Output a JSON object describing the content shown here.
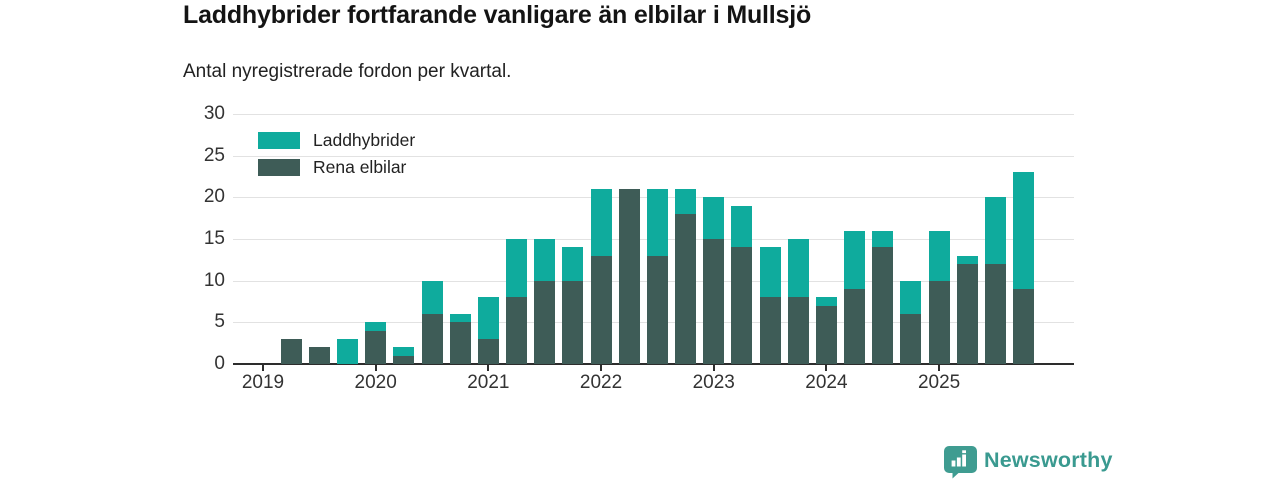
{
  "header": {
    "title": "Laddhybrider fortfarande vanligare än elbilar i Mullsjö",
    "subtitle": "Antal nyregistrerade fordon per kvartal."
  },
  "chart_data": {
    "type": "bar",
    "stacked": true,
    "title": "Laddhybrider fortfarande vanligare än elbilar i Mullsjö",
    "subtitle": "Antal nyregistrerade fordon per kvartal.",
    "categories": [
      "2019 Q1",
      "2019 Q2",
      "2019 Q3",
      "2019 Q4",
      "2020 Q1",
      "2020 Q2",
      "2020 Q3",
      "2020 Q4",
      "2021 Q1",
      "2021 Q2",
      "2021 Q3",
      "2021 Q4",
      "2022 Q1",
      "2022 Q2",
      "2022 Q3",
      "2022 Q4",
      "2023 Q1",
      "2023 Q2",
      "2023 Q3",
      "2023 Q4",
      "2024 Q1",
      "2024 Q2",
      "2024 Q3",
      "2024 Q4",
      "2025 Q1",
      "2025 Q2",
      "2025 Q3",
      "2025 Q4"
    ],
    "series": [
      {
        "name": "Laddhybrider",
        "color": "#0fab9d",
        "values": [
          0,
          0,
          0,
          3,
          1,
          1,
          4,
          1,
          5,
          7,
          5,
          4,
          8,
          0,
          8,
          3,
          5,
          5,
          6,
          7,
          1,
          7,
          2,
          4,
          6,
          1,
          8,
          14
        ]
      },
      {
        "name": "Rena elbilar",
        "color": "#3e5c57",
        "values": [
          0,
          3,
          2,
          0,
          4,
          1,
          6,
          5,
          3,
          8,
          10,
          10,
          13,
          21,
          13,
          18,
          15,
          14,
          8,
          8,
          7,
          9,
          14,
          6,
          10,
          12,
          12,
          9
        ]
      }
    ],
    "stack_bottom_to_top": [
      "Rena elbilar",
      "Laddhybrider"
    ],
    "ylim": [
      0,
      30
    ],
    "yticks": [
      0,
      5,
      10,
      15,
      20,
      25,
      30
    ],
    "xtick_labels": [
      "2019",
      "2020",
      "2021",
      "2022",
      "2023",
      "2024",
      "2025"
    ],
    "xtick_quarter_indices": [
      0,
      4,
      8,
      12,
      16,
      20,
      24
    ],
    "grid": "horizontal",
    "legend_position": "top-left"
  },
  "legend": {
    "items": [
      {
        "label": "Laddhybrider",
        "color": "#0fab9d"
      },
      {
        "label": "Rena elbilar",
        "color": "#3e5c57"
      }
    ]
  },
  "footer": {
    "brand": "Newsworthy",
    "brand_color": "#3a9a90",
    "logo_icon": "bar-chart-badge-icon",
    "logo_badge_color": "#3f9c91"
  }
}
